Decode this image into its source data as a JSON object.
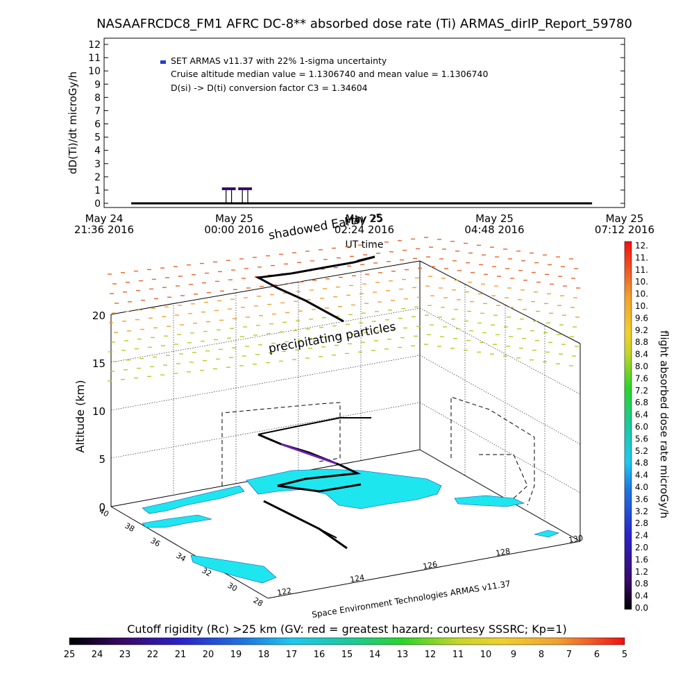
{
  "title": "NASAAFRCDC8_FM1 AFRC DC-8** absorbed dose rate (Ti) ARMAS_dirIP_Report_59780",
  "colors": {
    "frame": "#000000",
    "gridline": "#000000",
    "flight_track": "#000000",
    "dose_marker": "#3a0a6a",
    "legend_marker": "#1f3fd6",
    "precip_high": "#e8622a",
    "precip_low": "#b8c92a",
    "land": "#1ee6ee",
    "low_dose": "#6a1fb0"
  },
  "chart_data": [
    {
      "type": "scatter",
      "ylabel": "dD(Ti)/dt microGy/h",
      "xlabel": "UT time",
      "ylim": [
        0,
        12
      ],
      "yticks": [
        "0",
        "1",
        "2",
        "3",
        "4",
        "5",
        "6",
        "7",
        "8",
        "9",
        "10",
        "11",
        "12"
      ],
      "xticks": [
        {
          "day": "May 24",
          "time": "21:36 2016"
        },
        {
          "day": "May 25",
          "time": "00:00 2016"
        },
        {
          "day": "May 25",
          "time": "02:24 2016"
        },
        {
          "day": "May 25",
          "time": "04:48 2016"
        },
        {
          "day": "May 25",
          "time": "07:12 2016"
        }
      ],
      "legend": [
        "SET ARMAS v11.37 with 22% 1-sigma uncertainty",
        "Cruise altitude median value = 1.1306740 and mean value = 1.1306740",
        "D(si) -> D(ti) conversion factor C3 = 1.34604"
      ],
      "series": [
        {
          "name": "SET ARMAS v11.37",
          "x_hours_from_start": [
            0.5,
            1.0,
            1.5,
            2.0,
            2.1,
            2.25,
            2.35,
            2.45,
            2.55,
            2.65,
            2.75,
            3.0,
            3.5,
            4.0,
            5.0,
            6.0,
            7.0,
            8.0,
            9.0
          ],
          "values": [
            0,
            0,
            0,
            0,
            0,
            1.1,
            1.1,
            0,
            1.1,
            1.1,
            0,
            0,
            0,
            0,
            0,
            0,
            0,
            0,
            0
          ]
        }
      ]
    },
    {
      "type": "heatmap",
      "ylabel": "Altitude (km)",
      "zticks": [
        "0",
        "5",
        "10",
        "15",
        "20"
      ],
      "lat_ticks": [
        "40",
        "38",
        "36",
        "34",
        "32",
        "30",
        "28"
      ],
      "lon_ticks": [
        "122",
        "124",
        "126",
        "128",
        "130"
      ],
      "annotations": [
        "shadowed Earth",
        "precipitating particles",
        "May 25"
      ],
      "credit": "Space Environment Technologies ARMAS v11.37"
    },
    {
      "type": "colorbar",
      "label": "flight absorbed dose rate microGy/h",
      "orientation": "vertical",
      "ticks": [
        "12.",
        "11.",
        "11.",
        "10.",
        "10.",
        "10.",
        "9.6",
        "9.2",
        "8.8",
        "8.4",
        "8.0",
        "7.6",
        "7.2",
        "6.8",
        "6.4",
        "6.0",
        "5.6",
        "5.2",
        "4.8",
        "4.4",
        "4.0",
        "3.6",
        "3.2",
        "2.8",
        "2.4",
        "2.0",
        "1.6",
        "1.2",
        "0.8",
        "0.4",
        "0.0"
      ]
    },
    {
      "type": "colorbar",
      "label": "Cutoff rigidity (Rc) >25 km (GV: red = greatest hazard; courtesy SSSRC; Kp=1)",
      "orientation": "horizontal",
      "ticks": [
        "25",
        "24",
        "23",
        "22",
        "21",
        "20",
        "19",
        "18",
        "17",
        "16",
        "15",
        "14",
        "13",
        "12",
        "11",
        "10",
        "9",
        "8",
        "7",
        "6",
        "5"
      ]
    }
  ]
}
